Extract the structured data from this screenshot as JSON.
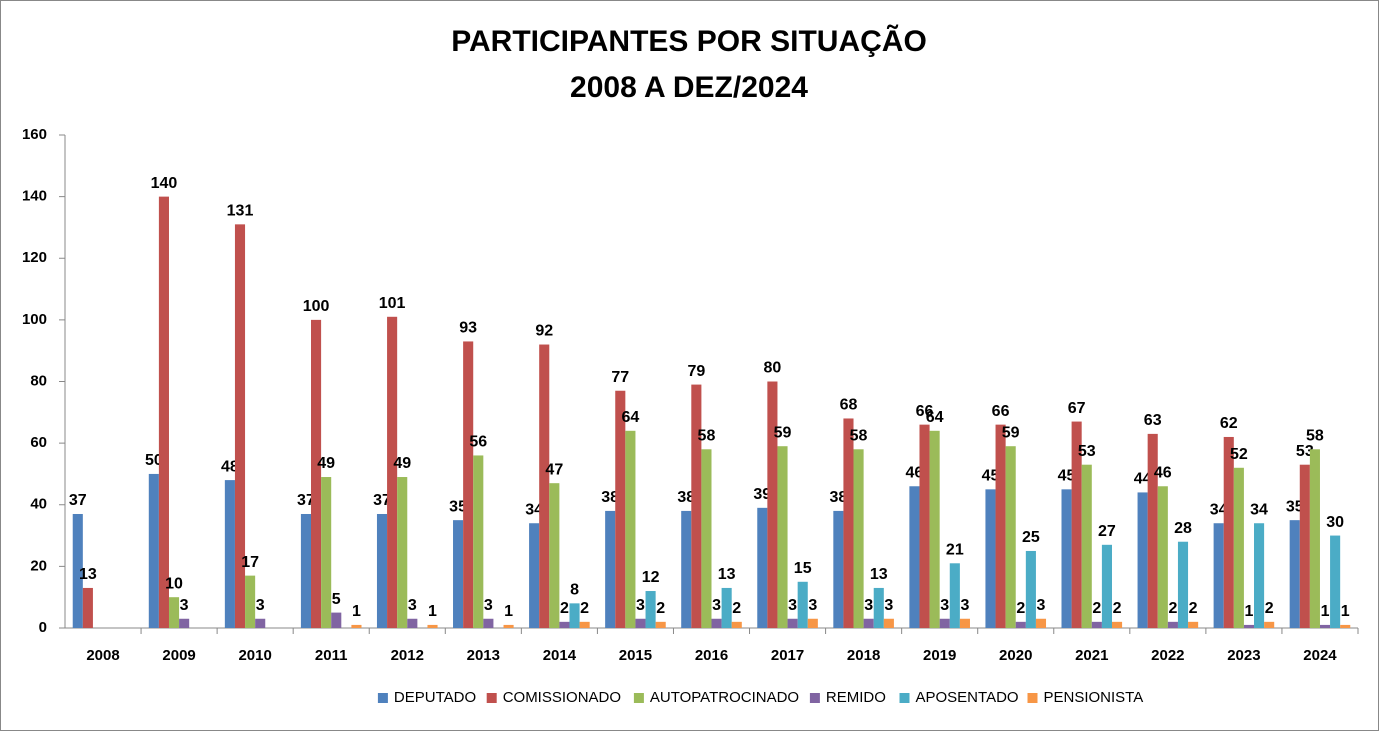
{
  "chart_data": {
    "type": "bar",
    "title": "PARTICIPANTES POR SITUAÇÃO",
    "subtitle": "2008 A DEZ/2024",
    "categories": [
      "2008",
      "2009",
      "2010",
      "2011",
      "2012",
      "2013",
      "2014",
      "2015",
      "2016",
      "2017",
      "2018",
      "2019",
      "2020",
      "2021",
      "2022",
      "2023",
      "2024"
    ],
    "series": [
      {
        "name": "DEPUTADO",
        "color": "#4f81bd",
        "values": [
          37,
          50,
          48,
          37,
          37,
          35,
          34,
          38,
          38,
          39,
          38,
          46,
          45,
          45,
          44,
          34,
          35
        ]
      },
      {
        "name": "COMISSIONADO",
        "color": "#c0504d",
        "values": [
          13,
          140,
          131,
          100,
          101,
          93,
          92,
          77,
          79,
          80,
          68,
          66,
          66,
          67,
          63,
          62,
          53
        ]
      },
      {
        "name": "AUTOPATROCINADO",
        "color": "#9bbb59",
        "values": [
          null,
          10,
          17,
          49,
          49,
          56,
          47,
          64,
          58,
          59,
          58,
          64,
          59,
          53,
          46,
          52,
          58
        ]
      },
      {
        "name": "REMIDO",
        "color": "#8064a2",
        "values": [
          null,
          3,
          3,
          5,
          3,
          3,
          2,
          3,
          3,
          3,
          3,
          3,
          2,
          2,
          2,
          1,
          1
        ]
      },
      {
        "name": "APOSENTADO",
        "color": "#4bacc6",
        "values": [
          null,
          null,
          null,
          null,
          null,
          null,
          8,
          12,
          13,
          15,
          13,
          21,
          25,
          27,
          28,
          34,
          30
        ]
      },
      {
        "name": "PENSIONISTA",
        "color": "#f79646",
        "values": [
          null,
          null,
          null,
          1,
          1,
          1,
          2,
          2,
          2,
          3,
          3,
          3,
          3,
          2,
          2,
          2,
          1
        ]
      }
    ],
    "ylim": [
      0,
      160
    ],
    "yticks": [
      0,
      20,
      40,
      60,
      80,
      100,
      120,
      140,
      160
    ],
    "grid": false,
    "legend": "bottom"
  }
}
